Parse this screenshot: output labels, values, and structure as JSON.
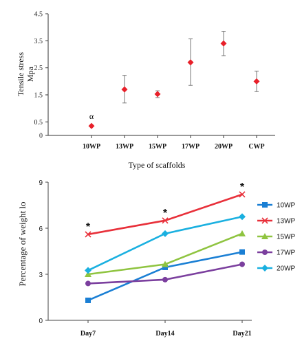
{
  "chart_data": [
    {
      "type": "scatter",
      "title": "",
      "xlabel": "Type of scaffolds",
      "ylabel_line1": "Tensile stress",
      "ylabel_line2": "Mpa",
      "ylim": [
        0,
        4.5
      ],
      "yticks": [
        "0",
        "0.5",
        "1.5",
        "2.5",
        "3.5",
        "4.5"
      ],
      "categories": [
        "10WP",
        "13WP",
        "15WP",
        "17WP",
        "20WP",
        "CWP"
      ],
      "values": [
        0.35,
        1.7,
        1.53,
        2.7,
        3.4,
        2.0
      ],
      "error_low": [
        0.35,
        1.2,
        1.4,
        1.85,
        2.95,
        1.62
      ],
      "error_high": [
        0.35,
        2.22,
        1.65,
        3.57,
        3.85,
        2.38
      ],
      "annotations": [
        {
          "category": "10WP",
          "text": "α"
        }
      ],
      "marker_color": "#e8202a"
    },
    {
      "type": "line",
      "title": "",
      "xlabel": "",
      "ylabel": "Percentage of weight lo",
      "ylim": [
        0,
        9
      ],
      "yticks": [
        "0",
        "3",
        "6",
        "9"
      ],
      "categories": [
        "Day7",
        "Day14",
        "Day21"
      ],
      "series": [
        {
          "name": "10WP",
          "values": [
            1.3,
            3.45,
            4.45
          ],
          "color": "#1a7fd4",
          "marker": "square"
        },
        {
          "name": "13WP",
          "values": [
            5.6,
            6.5,
            8.2
          ],
          "color": "#e8303a",
          "marker": "x"
        },
        {
          "name": "15WP",
          "values": [
            3.0,
            3.65,
            5.65
          ],
          "color": "#8fc440",
          "marker": "triangle"
        },
        {
          "name": "17WP",
          "values": [
            2.4,
            2.65,
            3.65
          ],
          "color": "#7b3f9e",
          "marker": "circle"
        },
        {
          "name": "20WP",
          "values": [
            3.25,
            5.65,
            6.75
          ],
          "color": "#1ab0e0",
          "marker": "diamond"
        }
      ],
      "annotations": [
        {
          "category": "Day7",
          "text": "*"
        },
        {
          "category": "Day14",
          "text": "*"
        },
        {
          "category": "Day21",
          "text": "*"
        }
      ],
      "legend_position": "right"
    }
  ]
}
